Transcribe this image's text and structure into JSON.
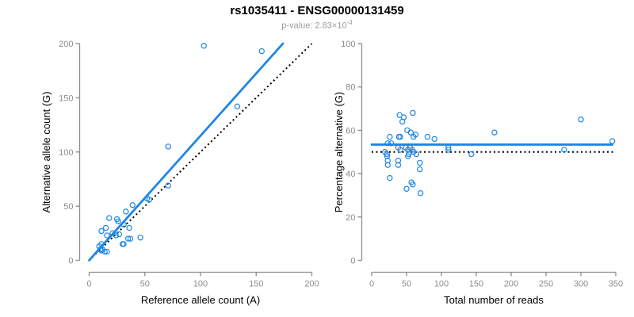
{
  "header": {
    "title": "rs1035411 - ENSG00000131459",
    "pvalue": {
      "label": "p-value: ",
      "value_base": "2.83×10",
      "exponent": "-4"
    }
  },
  "colors": {
    "point": "#1E86E5",
    "fit_line": "#1E86E5",
    "reference_line": "#000000",
    "axis": "#8C8C8C",
    "tick_label": "#8C8C8C",
    "title": "#000000",
    "subtitle": "#9B9B9B"
  },
  "chart_data": [
    {
      "type": "scatter",
      "panel": "left",
      "xlabel": "Reference allele count (A)",
      "ylabel": "Alternative allele count (G)",
      "xlim": [
        0,
        200
      ],
      "ylim": [
        0,
        200
      ],
      "xticks": [
        0,
        50,
        100,
        150,
        200
      ],
      "yticks": [
        0,
        50,
        100,
        150,
        200
      ],
      "grid": false,
      "points": [
        [
          103,
          198
        ],
        [
          155,
          193
        ],
        [
          133,
          142
        ],
        [
          71,
          105
        ],
        [
          71,
          69
        ],
        [
          52,
          57
        ],
        [
          54,
          56
        ],
        [
          39,
          51
        ],
        [
          33,
          45
        ],
        [
          25,
          38
        ],
        [
          26,
          36
        ],
        [
          18,
          39
        ],
        [
          31,
          33
        ],
        [
          36,
          30
        ],
        [
          15,
          30
        ],
        [
          11,
          27
        ],
        [
          21,
          25
        ],
        [
          16,
          23
        ],
        [
          24,
          23
        ],
        [
          27,
          24
        ],
        [
          35,
          20
        ],
        [
          37,
          20
        ],
        [
          46,
          21
        ],
        [
          30,
          15
        ],
        [
          31,
          15
        ],
        [
          11,
          15
        ],
        [
          9,
          13
        ],
        [
          10,
          10
        ],
        [
          12,
          10
        ],
        [
          11,
          9
        ],
        [
          14,
          8
        ],
        [
          16,
          8
        ]
      ],
      "fit_line": {
        "x": [
          0,
          174
        ],
        "y": [
          0,
          200
        ]
      },
      "reference_line": {
        "x": [
          0,
          200
        ],
        "y": [
          0,
          200
        ]
      }
    },
    {
      "type": "scatter",
      "panel": "right",
      "xlabel": "Total number of reads",
      "ylabel": "Percentage alternative (G)",
      "xlim": [
        0,
        350
      ],
      "ylim": [
        0,
        100
      ],
      "xticks": [
        0,
        50,
        100,
        150,
        200,
        250,
        300,
        350
      ],
      "yticks": [
        0,
        20,
        40,
        60,
        80,
        100
      ],
      "grid": false,
      "points": [
        [
          40,
          67
        ],
        [
          46,
          66
        ],
        [
          59,
          68
        ],
        [
          44,
          64
        ],
        [
          51,
          60
        ],
        [
          26,
          57
        ],
        [
          39,
          57
        ],
        [
          41,
          57
        ],
        [
          56,
          59
        ],
        [
          60,
          57
        ],
        [
          63,
          58
        ],
        [
          80,
          57
        ],
        [
          90,
          56
        ],
        [
          176,
          59
        ],
        [
          23,
          54
        ],
        [
          28,
          54
        ],
        [
          38,
          52
        ],
        [
          41,
          51
        ],
        [
          49,
          52
        ],
        [
          52,
          51
        ],
        [
          55,
          52
        ],
        [
          58,
          51
        ],
        [
          60,
          50
        ],
        [
          64,
          49
        ],
        [
          19,
          50
        ],
        [
          22,
          49
        ],
        [
          53,
          49
        ],
        [
          110,
          52
        ],
        [
          110,
          51
        ],
        [
          143,
          49
        ],
        [
          22,
          48
        ],
        [
          23,
          46
        ],
        [
          52,
          48
        ],
        [
          38,
          46
        ],
        [
          23,
          44
        ],
        [
          38,
          44
        ],
        [
          69,
          45
        ],
        [
          69,
          42
        ],
        [
          26,
          38
        ],
        [
          50,
          33
        ],
        [
          57,
          36
        ],
        [
          59,
          35
        ],
        [
          70,
          31
        ],
        [
          300,
          65
        ],
        [
          345,
          55
        ],
        [
          276,
          51
        ]
      ],
      "fit_line": {
        "x": [
          0,
          345
        ],
        "y": [
          53.4,
          53.4
        ]
      },
      "reference_line": {
        "x": [
          0,
          350
        ],
        "y": [
          50,
          50
        ]
      }
    }
  ]
}
